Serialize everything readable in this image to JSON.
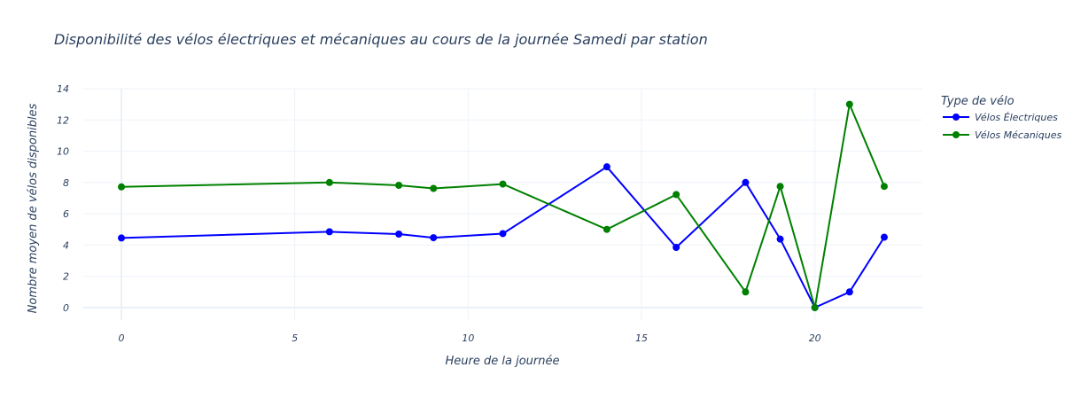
{
  "chart_data": {
    "type": "line",
    "title": "Disponibilité des vélos électriques et mécaniques au cours de la journée Samedi par station",
    "xlabel": "Heure de la journée",
    "ylabel": "Nombre moyen de vélos disponibles",
    "xlim": [
      -1.1,
      23.1
    ],
    "ylim": [
      -0.8,
      14
    ],
    "xticks": [
      0,
      5,
      10,
      15,
      20
    ],
    "yticks": [
      0,
      2,
      4,
      6,
      8,
      10,
      12,
      14
    ],
    "grid": true,
    "legend_title": "Type de vélo",
    "legend_position": "top-right",
    "series": [
      {
        "name": "Vélos Électriques",
        "color": "#0000ff",
        "x": [
          0,
          6,
          8,
          9,
          11,
          14,
          16,
          18,
          19,
          20,
          21,
          22
        ],
        "y": [
          4.45,
          4.85,
          4.7,
          4.47,
          4.73,
          9.0,
          3.85,
          8.0,
          4.38,
          0.0,
          1.0,
          4.5
        ]
      },
      {
        "name": "Vélos Mécaniques",
        "color": "#008000",
        "x": [
          0,
          6,
          8,
          9,
          11,
          14,
          16,
          18,
          19,
          20,
          21,
          22
        ],
        "y": [
          7.72,
          8.0,
          7.82,
          7.62,
          7.9,
          5.0,
          7.23,
          1.0,
          7.75,
          0.0,
          13.0,
          7.75
        ]
      }
    ]
  }
}
